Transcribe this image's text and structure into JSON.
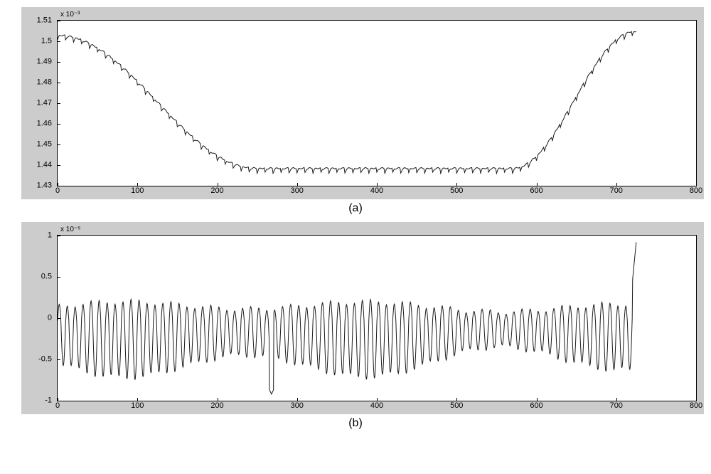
{
  "figure": {
    "background_color": "#cccccc",
    "plot_bg_color": "#ffffff",
    "line_color": "#1a1a1a",
    "axis_color": "#000000",
    "font_family": "Arial",
    "tick_fontsize": 11,
    "exponent_fontsize": 10,
    "subplot_label_fontsize": 16
  },
  "subplot_a": {
    "label": "(a)",
    "exponent_label": "x 10⁻³",
    "type": "line",
    "line_width": 1,
    "xlim": [
      0,
      800
    ],
    "ylim": [
      1.43,
      1.51
    ],
    "x_ticks": [
      0,
      100,
      200,
      300,
      400,
      500,
      600,
      700,
      800
    ],
    "y_ticks": [
      1.43,
      1.44,
      1.45,
      1.46,
      1.47,
      1.48,
      1.49,
      1.5,
      1.51
    ],
    "n_points": 725,
    "baseline_shape": "u-curve",
    "baseline_start": 1.503,
    "baseline_plateau_start_x": 250,
    "baseline_plateau_end_x": 570,
    "baseline_plateau_value": 1.4385,
    "baseline_end": 1.505,
    "ripple_amplitude": 0.0022,
    "ripple_period": 10
  },
  "subplot_b": {
    "label": "(b)",
    "exponent_label": "x 10⁻⁵",
    "type": "line",
    "line_width": 1,
    "xlim": [
      0,
      800
    ],
    "ylim": [
      -1,
      1
    ],
    "x_ticks": [
      0,
      100,
      200,
      300,
      400,
      500,
      600,
      700,
      800
    ],
    "y_ticks": [
      -1,
      -0.5,
      0,
      0.5,
      1
    ],
    "n_points": 725,
    "oscillation_period": 10,
    "amplitude_upper": 0.2,
    "amplitude_lower": -0.6,
    "bias": -0.15,
    "dip_x": 268,
    "dip_value": -0.92,
    "end_spike_value": 0.92
  }
}
